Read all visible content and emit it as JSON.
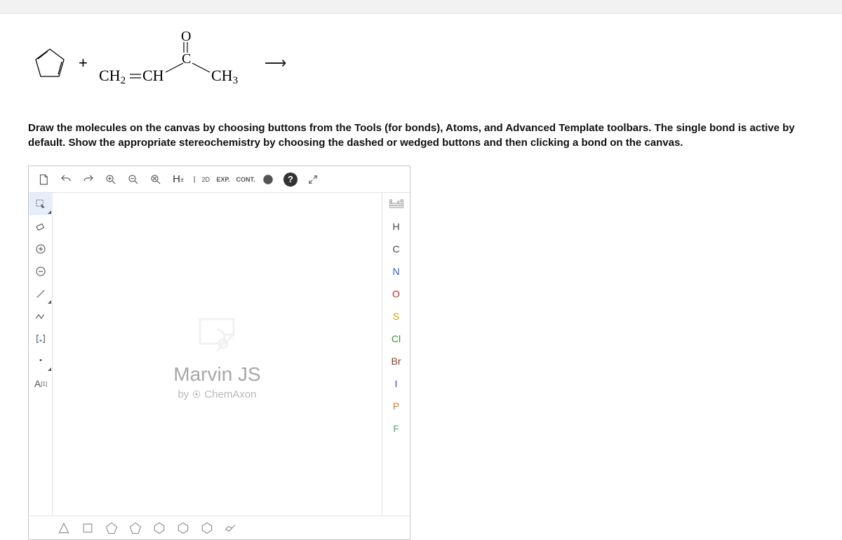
{
  "reaction": {
    "plus": "+",
    "vinyl_left": "CH",
    "vinyl_left_sub": "2",
    "vinyl_dbl": "CH",
    "o_label": "O",
    "c_label": "C",
    "ch3_label": "CH",
    "ch3_sub": "3",
    "arrow": "⟶"
  },
  "instructions": "Draw the molecules on the canvas by choosing buttons from the Tools (for bonds), Atoms, and Advanced Template toolbars. The single bond is active by default. Show the appropriate stereochemistry by choosing the dashed or wedged buttons and then clicking a bond on the canvas.",
  "watermark": {
    "title": "Marvin JS",
    "subtitle_prefix": "by",
    "subtitle_brand": "ChemAxon"
  },
  "top_toolbar": {
    "exp": "EXP.",
    "cont": "CONT.",
    "h_label": "H",
    "twod": "2D"
  },
  "left_toolbar": {
    "a_label": "A",
    "a_sup": "[1]"
  },
  "atoms": [
    {
      "label": "H",
      "color": "#444444"
    },
    {
      "label": "C",
      "color": "#444444"
    },
    {
      "label": "N",
      "color": "#2964c5"
    },
    {
      "label": "O",
      "color": "#d02222"
    },
    {
      "label": "S",
      "color": "#c8a400"
    },
    {
      "label": "Cl",
      "color": "#2f9a2f"
    },
    {
      "label": "Br",
      "color": "#8b3f1e"
    },
    {
      "label": "I",
      "color": "#6a2fa8"
    },
    {
      "label": "P",
      "color": "#d07a1e"
    },
    {
      "label": "F",
      "color": "#5aa96b"
    }
  ],
  "templates": [
    "triangle",
    "square",
    "pentagon",
    "pentagon",
    "hexagon",
    "hexagon",
    "hexagon",
    "chair"
  ]
}
